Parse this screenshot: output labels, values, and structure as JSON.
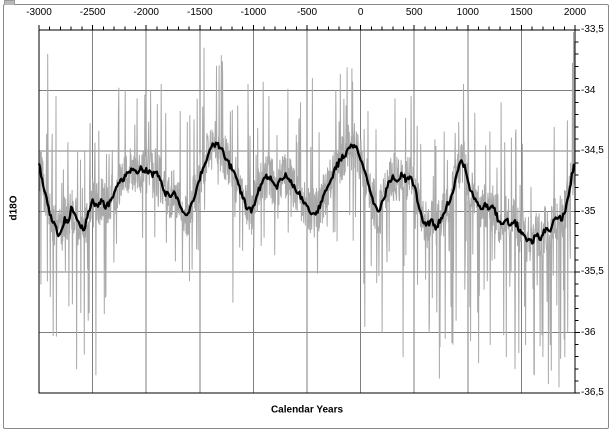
{
  "figure": {
    "background": "#ffffff",
    "outer_border_color": "#8a8a8a"
  },
  "chart_data": {
    "type": "line",
    "title": "",
    "xlabel": "Calendar Years",
    "ylabel": "d18O",
    "legend": "none",
    "x_axis": {
      "min": -3000,
      "max": 2000,
      "major_step": 500,
      "minor_step": 100,
      "position": "top",
      "tick_values": [
        -3000,
        -2500,
        -2000,
        -1500,
        -1000,
        -500,
        0,
        500,
        1000,
        1500,
        2000
      ],
      "tick_labels": [
        "-3000",
        "-2500",
        "-2000",
        "-1500",
        "-1000",
        "-500",
        "0",
        "500",
        "1000",
        "1500",
        "2000"
      ]
    },
    "y_axis": {
      "min": -36.5,
      "max": -33.5,
      "major_step": 0.5,
      "minor_step": 0.1,
      "position": "right",
      "tick_values": [
        -33.5,
        -34,
        -34.5,
        -35,
        -35.5,
        -36,
        -36.5
      ],
      "tick_labels": [
        "-33,5",
        "-34",
        "-34,5",
        "-35",
        "-35,5",
        "-36",
        "-36,5"
      ]
    },
    "grid": {
      "color": "#7f7f7f",
      "horizontal": true,
      "vertical": true
    },
    "frame_color": "#000000",
    "series": {
      "smoothed": {
        "color": "#000000",
        "stroke_width": 2.3,
        "points": [
          [
            -3000,
            -34.62
          ],
          [
            -2960,
            -34.78
          ],
          [
            -2930,
            -34.9
          ],
          [
            -2900,
            -35.02
          ],
          [
            -2860,
            -35.1
          ],
          [
            -2820,
            -35.18
          ],
          [
            -2790,
            -35.16
          ],
          [
            -2760,
            -35.05
          ],
          [
            -2730,
            -35.1
          ],
          [
            -2700,
            -34.98
          ],
          [
            -2660,
            -35.02
          ],
          [
            -2620,
            -35.12
          ],
          [
            -2580,
            -35.14
          ],
          [
            -2540,
            -35.02
          ],
          [
            -2500,
            -34.92
          ],
          [
            -2460,
            -34.97
          ],
          [
            -2420,
            -34.9
          ],
          [
            -2380,
            -34.97
          ],
          [
            -2340,
            -34.92
          ],
          [
            -2300,
            -34.85
          ],
          [
            -2260,
            -34.78
          ],
          [
            -2220,
            -34.74
          ],
          [
            -2180,
            -34.7
          ],
          [
            -2140,
            -34.66
          ],
          [
            -2100,
            -34.68
          ],
          [
            -2060,
            -34.64
          ],
          [
            -2020,
            -34.67
          ],
          [
            -1980,
            -34.66
          ],
          [
            -1940,
            -34.7
          ],
          [
            -1900,
            -34.67
          ],
          [
            -1860,
            -34.75
          ],
          [
            -1820,
            -34.85
          ],
          [
            -1780,
            -34.87
          ],
          [
            -1740,
            -34.82
          ],
          [
            -1700,
            -34.92
          ],
          [
            -1660,
            -35.0
          ],
          [
            -1620,
            -35.05
          ],
          [
            -1580,
            -34.95
          ],
          [
            -1540,
            -34.85
          ],
          [
            -1500,
            -34.72
          ],
          [
            -1460,
            -34.62
          ],
          [
            -1420,
            -34.52
          ],
          [
            -1380,
            -34.46
          ],
          [
            -1340,
            -34.44
          ],
          [
            -1300,
            -34.48
          ],
          [
            -1260,
            -34.56
          ],
          [
            -1220,
            -34.62
          ],
          [
            -1180,
            -34.68
          ],
          [
            -1140,
            -34.78
          ],
          [
            -1100,
            -34.88
          ],
          [
            -1060,
            -34.97
          ],
          [
            -1020,
            -35.0
          ],
          [
            -980,
            -34.9
          ],
          [
            -940,
            -34.8
          ],
          [
            -900,
            -34.73
          ],
          [
            -860,
            -34.7
          ],
          [
            -820,
            -34.76
          ],
          [
            -780,
            -34.8
          ],
          [
            -740,
            -34.72
          ],
          [
            -700,
            -34.7
          ],
          [
            -660,
            -34.75
          ],
          [
            -620,
            -34.8
          ],
          [
            -580,
            -34.84
          ],
          [
            -540,
            -34.9
          ],
          [
            -500,
            -34.96
          ],
          [
            -460,
            -35.0
          ],
          [
            -420,
            -35.02
          ],
          [
            -380,
            -34.96
          ],
          [
            -340,
            -34.86
          ],
          [
            -300,
            -34.78
          ],
          [
            -260,
            -34.7
          ],
          [
            -220,
            -34.62
          ],
          [
            -180,
            -34.56
          ],
          [
            -140,
            -34.52
          ],
          [
            -100,
            -34.47
          ],
          [
            -60,
            -34.45
          ],
          [
            -20,
            -34.52
          ],
          [
            20,
            -34.62
          ],
          [
            60,
            -34.75
          ],
          [
            100,
            -34.88
          ],
          [
            140,
            -34.96
          ],
          [
            180,
            -35.0
          ],
          [
            220,
            -34.88
          ],
          [
            260,
            -34.76
          ],
          [
            300,
            -34.71
          ],
          [
            340,
            -34.73
          ],
          [
            380,
            -34.7
          ],
          [
            420,
            -34.73
          ],
          [
            460,
            -34.7
          ],
          [
            500,
            -34.78
          ],
          [
            540,
            -34.95
          ],
          [
            580,
            -35.08
          ],
          [
            620,
            -35.12
          ],
          [
            660,
            -35.07
          ],
          [
            700,
            -35.13
          ],
          [
            740,
            -35.08
          ],
          [
            780,
            -35.0
          ],
          [
            820,
            -34.92
          ],
          [
            860,
            -34.85
          ],
          [
            900,
            -34.68
          ],
          [
            940,
            -34.58
          ],
          [
            970,
            -34.62
          ],
          [
            1000,
            -34.75
          ],
          [
            1040,
            -34.85
          ],
          [
            1080,
            -34.92
          ],
          [
            1120,
            -34.98
          ],
          [
            1160,
            -34.93
          ],
          [
            1200,
            -35.0
          ],
          [
            1240,
            -34.96
          ],
          [
            1280,
            -35.06
          ],
          [
            1320,
            -35.1
          ],
          [
            1360,
            -35.05
          ],
          [
            1400,
            -35.12
          ],
          [
            1440,
            -35.08
          ],
          [
            1480,
            -35.15
          ],
          [
            1520,
            -35.2
          ],
          [
            1560,
            -35.24
          ],
          [
            1600,
            -35.26
          ],
          [
            1640,
            -35.18
          ],
          [
            1680,
            -35.22
          ],
          [
            1720,
            -35.15
          ],
          [
            1760,
            -35.17
          ],
          [
            1800,
            -35.08
          ],
          [
            1840,
            -35.04
          ],
          [
            1880,
            -35.06
          ],
          [
            1920,
            -34.95
          ],
          [
            1950,
            -34.82
          ],
          [
            1975,
            -34.68
          ],
          [
            2000,
            -34.6
          ]
        ]
      },
      "raw": {
        "color": "#a9a9a9",
        "stroke_width": 1,
        "generator": {
          "seed": 20240601,
          "step_years": 3,
          "base_amplitude": 0.2,
          "clamp": [
            -36.47,
            -33.52
          ],
          "epochs_format": [
            "from",
            "to",
            "up_prob",
            "up_lo",
            "up_hi",
            "down_prob",
            "down_lo",
            "down_hi"
          ],
          "epochs": [
            [
              -3000,
              -2350,
              0.07,
              0.3,
              0.75,
              0.05,
              0.3,
              1.15
            ],
            [
              -2350,
              -1550,
              0.07,
              0.3,
              0.8,
              0.04,
              0.25,
              0.6
            ],
            [
              -1550,
              -850,
              0.08,
              0.35,
              0.85,
              0.04,
              0.25,
              0.6
            ],
            [
              -850,
              -100,
              0.07,
              0.3,
              0.75,
              0.05,
              0.25,
              0.65
            ],
            [
              -100,
              650,
              0.06,
              0.3,
              0.7,
              0.07,
              0.3,
              1.0
            ],
            [
              650,
              1900,
              0.06,
              0.3,
              0.8,
              0.12,
              0.35,
              1.3
            ],
            [
              1900,
              2001,
              0.07,
              0.3,
              0.9,
              0.1,
              0.4,
              1.2
            ]
          ],
          "extremes": [
            [
              -2920,
              -33.7
            ],
            [
              -2840,
              -34.05
            ],
            [
              -2650,
              -36.3
            ],
            [
              -2540,
              -35.9
            ],
            [
              -2470,
              -36.35
            ],
            [
              -2255,
              -33.98
            ],
            [
              -2000,
              -34.05
            ],
            [
              -1860,
              -33.95
            ],
            [
              -1460,
              -33.65
            ],
            [
              -1345,
              -33.8
            ],
            [
              -1190,
              -35.75
            ],
            [
              -1050,
              -33.95
            ],
            [
              -855,
              -34.05
            ],
            [
              -560,
              -34.1
            ],
            [
              -450,
              -33.9
            ],
            [
              -230,
              -34.0
            ],
            [
              -80,
              -33.82
            ],
            [
              40,
              -35.95
            ],
            [
              200,
              -36.0
            ],
            [
              395,
              -36.2
            ],
            [
              470,
              -34.05
            ],
            [
              640,
              -36.0
            ],
            [
              790,
              -36.05
            ],
            [
              890,
              -35.9
            ],
            [
              960,
              -33.95
            ],
            [
              1005,
              -34.0
            ],
            [
              1100,
              -36.25
            ],
            [
              1210,
              -36.1
            ],
            [
              1310,
              -34.1
            ],
            [
              1360,
              -36.2
            ],
            [
              1440,
              -36.3
            ],
            [
              1540,
              -36.1
            ],
            [
              1620,
              -36.35
            ],
            [
              1700,
              -36.2
            ],
            [
              1770,
              -36.1
            ],
            [
              1850,
              -36.45
            ],
            [
              1905,
              -36.2
            ],
            [
              1930,
              -34.25
            ],
            [
              1985,
              -33.52
            ],
            [
              1992,
              -33.6
            ]
          ]
        }
      }
    }
  }
}
